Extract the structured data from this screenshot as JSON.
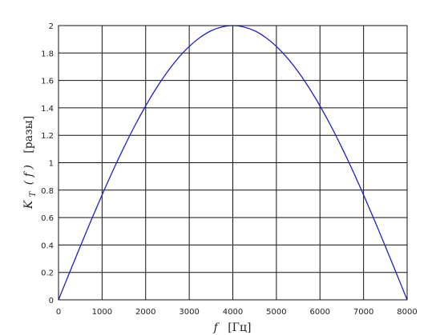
{
  "chart_data": {
    "type": "line",
    "title": "",
    "xlabel": {
      "var": "f",
      "unit": "[Гц]"
    },
    "ylabel": {
      "var": "K",
      "sub": "T",
      "arg": "( f )",
      "unit": "[разы]"
    },
    "xlim": [
      0,
      8000
    ],
    "ylim": [
      0,
      2
    ],
    "xticks": [
      0,
      1000,
      2000,
      3000,
      4000,
      5000,
      6000,
      7000,
      8000
    ],
    "xtick_labels": [
      "0",
      "1000",
      "2000",
      "3000",
      "4000",
      "5000",
      "6000",
      "7000",
      "8000"
    ],
    "yticks": [
      0,
      0.2,
      0.4,
      0.6,
      0.8,
      1.0,
      1.2,
      1.4,
      1.6,
      1.8,
      2.0
    ],
    "ytick_labels": [
      "0",
      "0.2",
      "0.4",
      "0.6",
      "0.8",
      "1",
      "1.2",
      "1.4",
      "1.6",
      "1.8",
      "2"
    ],
    "grid": true,
    "series": [
      {
        "color": "#1f1fcc",
        "x": [
          0,
          250,
          500,
          750,
          1000,
          1250,
          1500,
          1750,
          2000,
          2250,
          2500,
          2750,
          3000,
          3250,
          3500,
          3750,
          4000,
          4250,
          4500,
          4750,
          5000,
          5250,
          5500,
          5750,
          6000,
          6250,
          6500,
          6750,
          7000,
          7250,
          7500,
          7750,
          8000
        ],
        "y": [
          0,
          0.196,
          0.39,
          0.581,
          0.765,
          0.943,
          1.111,
          1.269,
          1.414,
          1.546,
          1.663,
          1.764,
          1.848,
          1.914,
          1.962,
          1.99,
          2.0,
          1.99,
          1.962,
          1.914,
          1.848,
          1.764,
          1.663,
          1.546,
          1.414,
          1.269,
          1.111,
          0.943,
          0.765,
          0.581,
          0.39,
          0.196,
          0
        ]
      }
    ]
  }
}
